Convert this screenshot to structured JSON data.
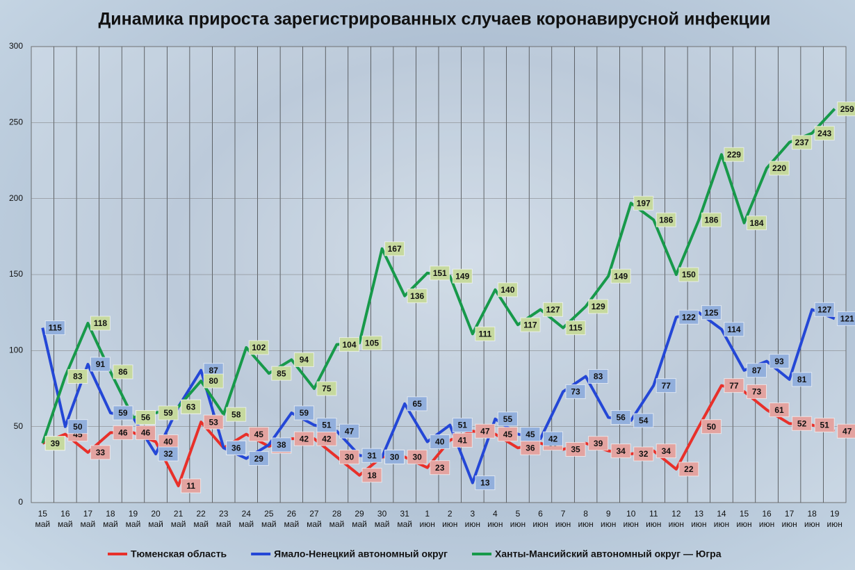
{
  "chart_data": {
    "type": "line",
    "title": "Динамика прироста зарегистрированных случаев коронавирусной инфекции",
    "categories": [
      "15 май",
      "16 май",
      "17 май",
      "18 май",
      "19 май",
      "20 май",
      "21 май",
      "22 май",
      "23 май",
      "24 май",
      "25 май",
      "26 май",
      "27 май",
      "28 май",
      "29 май",
      "30 май",
      "31 май",
      "1 июн",
      "2 июн",
      "3 июн",
      "4 июн",
      "5 июн",
      "6 июн",
      "7 июн",
      "8 июн",
      "9 июн",
      "10 июн",
      "11 июн",
      "12 июн",
      "13 июн",
      "14 июн",
      "15 июн",
      "16 июн",
      "17 июн",
      "18 июн",
      "19 июн"
    ],
    "series": [
      {
        "name": "Тюменская область",
        "color": "#e8302a",
        "label_color": "#e3a3a0",
        "values": [
          39,
          45,
          33,
          46,
          46,
          40,
          11,
          53,
          36,
          45,
          37,
          42,
          42,
          30,
          18,
          30,
          30,
          23,
          41,
          47,
          45,
          36,
          39,
          35,
          39,
          34,
          32,
          34,
          22,
          50,
          77,
          73,
          61,
          52,
          51,
          47
        ]
      },
      {
        "name": "Ямало-Ненецкий автономный округ",
        "color": "#2447d6",
        "label_color": "#92afdc",
        "values": [
          115,
          50,
          91,
          59,
          56,
          32,
          63,
          87,
          36,
          29,
          38,
          59,
          51,
          47,
          31,
          30,
          65,
          40,
          51,
          13,
          55,
          45,
          42,
          73,
          83,
          56,
          54,
          77,
          122,
          125,
          114,
          87,
          93,
          81,
          127,
          121
        ]
      },
      {
        "name": "Ханты-Мансийский автономный округ — Югра",
        "color": "#17994a",
        "label_color": "#c6d99e",
        "values": [
          39,
          83,
          118,
          86,
          56,
          59,
          63,
          80,
          58,
          102,
          85,
          94,
          75,
          104,
          105,
          167,
          136,
          151,
          149,
          111,
          140,
          117,
          127,
          115,
          129,
          149,
          197,
          186,
          150,
          186,
          229,
          184,
          220,
          237,
          243,
          259
        ]
      }
    ],
    "ylim": [
      0,
      300
    ],
    "yticks": [
      0,
      50,
      100,
      150,
      200,
      250,
      300
    ],
    "grid": true
  }
}
